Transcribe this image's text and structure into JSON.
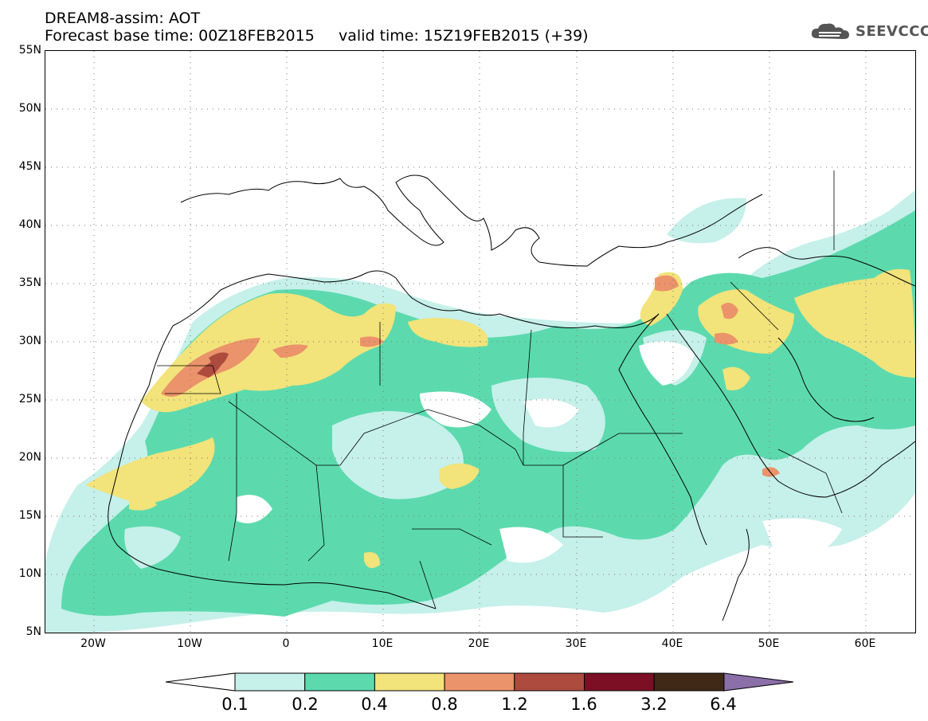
{
  "header": {
    "title": "DREAM8-assim: AOT",
    "subtitle": "Forecast base time: 00Z18FEB2015     valid time: 15Z19FEB2015 (+39)",
    "logo_text": "SEEVCCC"
  },
  "map": {
    "lon_range": [
      -25,
      65
    ],
    "lat_range": [
      5,
      55
    ],
    "y_ticks": [
      "55N",
      "50N",
      "45N",
      "40N",
      "35N",
      "30N",
      "25N",
      "20N",
      "15N",
      "10N",
      "5N"
    ],
    "x_ticks": [
      "20W",
      "10W",
      "0",
      "10E",
      "20E",
      "30E",
      "40E",
      "50E",
      "60E"
    ],
    "grid": "dotted"
  },
  "legend": {
    "levels": [
      "0.1",
      "0.2",
      "0.4",
      "0.8",
      "1.2",
      "1.6",
      "3.2",
      "6.4"
    ],
    "colors": [
      "#ffffff",
      "#c6f0ea",
      "#5cdaae",
      "#f2e37a",
      "#eb936a",
      "#ad4b3f",
      "#7c0f24",
      "#402a17",
      "#8b6fa8"
    ]
  }
}
